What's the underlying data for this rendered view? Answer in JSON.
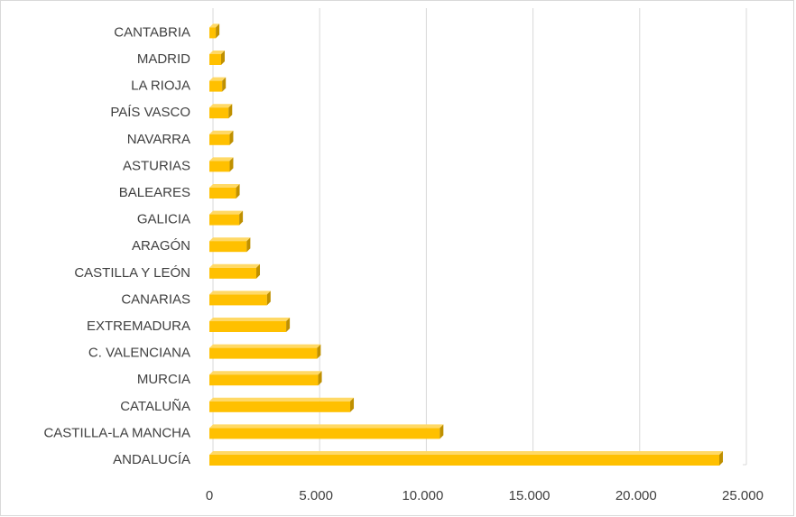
{
  "chart_data": {
    "type": "bar",
    "orientation": "horizontal",
    "style": "3d-clustered-bar",
    "categories": [
      "ANDALUCÍA",
      "CASTILLA-LA MANCHA",
      "CATALUÑA",
      "MURCIA",
      "C. VALENCIANA",
      "EXTREMADURA",
      "CANARIAS",
      "CASTILLA Y LEÓN",
      "ARAGÓN",
      "GALICIA",
      "BALEARES",
      "ASTURIAS",
      "NAVARRA",
      "PAÍS VASCO",
      "LA RIOJA",
      "MADRID",
      "CANTABRIA"
    ],
    "values": [
      23900,
      10800,
      6600,
      5100,
      5050,
      3600,
      2700,
      2200,
      1750,
      1400,
      1250,
      950,
      950,
      900,
      600,
      550,
      300
    ],
    "xlim": [
      0,
      25000
    ],
    "xticks": [
      0,
      5000,
      10000,
      15000,
      20000,
      25000
    ],
    "xtick_labels": [
      "0",
      "5.000",
      "10.000",
      "15.000",
      "20.000",
      "25.000"
    ],
    "title": "",
    "xlabel": "",
    "ylabel": "",
    "grid": "vertical",
    "legend": "none",
    "colors": {
      "bar": "#ffc000",
      "bar_top": "#ffd966",
      "bar_side": "#bf9000",
      "grid": "#d9d9d9",
      "text": "#404040"
    }
  }
}
